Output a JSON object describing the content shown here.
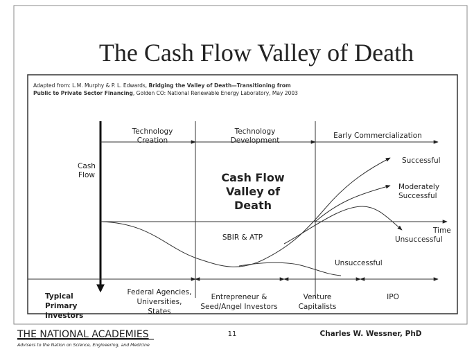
{
  "title": "The Cash Flow Valley of Death",
  "citation": {
    "prefix": "Adapted from: L.M. Murphy & P. L. Edwards, ",
    "work": [
      "Bridging the Valley of Death—Transitioning from",
      "Public to Private Sector Financing"
    ],
    "suffix": ", Golden CO: National Renewable Energy Laboratory, May 2003"
  },
  "phases": [
    [
      "Technology",
      "Creation"
    ],
    [
      "Technology",
      "Development"
    ],
    [
      "Early Commercialization"
    ]
  ],
  "axes": {
    "y": [
      "Cash",
      "Flow"
    ],
    "x": "Time"
  },
  "valley": [
    "Cash Flow",
    "Valley of",
    "Death"
  ],
  "program": "SBIR & ATP",
  "outcomes": {
    "successful": "Successful",
    "moderate": [
      "Moderately",
      "Successful"
    ],
    "unsuccessful_upper": "Unsuccessful",
    "unsuccessful_lower": "Unsuccessful"
  },
  "investors": {
    "label": [
      "Typical",
      "Primary",
      "Investors"
    ],
    "stages": [
      [
        "Federal Agencies,",
        "Universities,",
        "States"
      ],
      [
        "Entrepreneur &",
        "Seed/Angel Investors"
      ],
      [
        "Venture",
        "Capitalists"
      ],
      [
        "IPO"
      ]
    ]
  },
  "footer": {
    "org": "THE NATIONAL ACADEMIES",
    "tagline": "Advisers to the Nation on Science, Engineering, and Medicine",
    "page": "11",
    "author": "Charles W. Wessner, PhD"
  }
}
